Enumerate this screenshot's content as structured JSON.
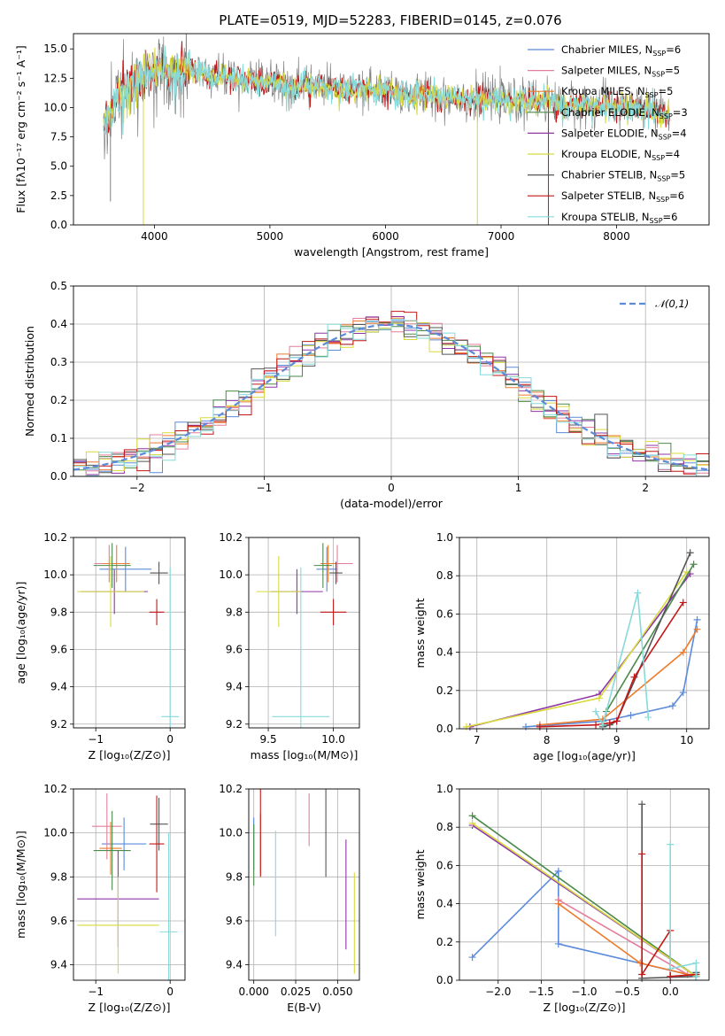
{
  "figure": {
    "title": "PLATE=0519, MJD=52283, FIBERID=0145, z=0.076"
  },
  "colors": {
    "Chabrier MILES": "#5b8bd9",
    "Salpeter MILES": "#e37f9b",
    "Kroupa MILES": "#ee7b2c",
    "Chabrier ELODIE": "#4a8a4a",
    "Salpeter ELODIE": "#8e36a6",
    "Kroupa ELODIE": "#d7da3d",
    "Chabrier STELIB": "#555555",
    "Salpeter STELIB": "#c41616",
    "Kroupa STELIB": "#86dada",
    "normal": "#5b8bd9"
  },
  "chart_data": [
    {
      "id": "spectrum",
      "type": "line",
      "xlabel": "wavelength [Angstrom, rest frame]",
      "ylabel": "Flux [fλ10⁻¹⁷ erg cm⁻² s⁻¹ A⁻¹]",
      "xlim": [
        3300,
        8800
      ],
      "ylim": [
        0,
        16.3
      ],
      "xticks": [
        4000,
        5000,
        6000,
        7000,
        8000
      ],
      "yticks": [
        0.0,
        2.5,
        5.0,
        7.5,
        10.0,
        12.5,
        15.0
      ],
      "yticklabels": [
        "0.0",
        "2.5",
        "5.0",
        "7.5",
        "10.0",
        "12.5",
        "15.0"
      ],
      "grid": false,
      "legend_position": "top-right",
      "legend": [
        {
          "name": "Chabrier MILES",
          "nssp": 6
        },
        {
          "name": "Salpeter MILES",
          "nssp": 5
        },
        {
          "name": "Kroupa MILES",
          "nssp": 5
        },
        {
          "name": "Chabrier ELODIE",
          "nssp": 3
        },
        {
          "name": "Salpeter ELODIE",
          "nssp": 4
        },
        {
          "name": "Kroupa ELODIE",
          "nssp": 4
        },
        {
          "name": "Chabrier STELIB",
          "nssp": 5
        },
        {
          "name": "Salpeter STELIB",
          "nssp": 6
        },
        {
          "name": "Kroupa STELIB",
          "nssp": 6
        }
      ],
      "data_curve": {
        "x": [
          3600,
          3700,
          3800,
          3900,
          4000,
          4100,
          4200,
          4300,
          4400,
          4500,
          4600,
          4700,
          4800,
          4900,
          5000,
          5100,
          5200,
          5300,
          5400,
          5500,
          5600,
          5700,
          5800,
          5900,
          6000,
          6100,
          6200,
          6300,
          6400,
          6500,
          6600,
          6700,
          6800,
          6900,
          7000,
          7100,
          7200,
          7300,
          7400,
          7500,
          7600,
          7700,
          7800,
          7900,
          8000,
          8100,
          8200,
          8300,
          8400
        ],
        "y": [
          9.0,
          11.5,
          12.0,
          12.8,
          13.4,
          13.3,
          13.0,
          13.4,
          12.9,
          12.7,
          12.6,
          12.5,
          12.4,
          12.3,
          12.1,
          12.0,
          11.6,
          12.0,
          11.8,
          11.5,
          11.6,
          11.3,
          11.6,
          11.4,
          11.5,
          11.2,
          11.0,
          11.2,
          11.1,
          10.9,
          11.0,
          10.8,
          10.6,
          10.8,
          10.7,
          10.4,
          10.5,
          10.5,
          10.7,
          10.3,
          10.2,
          10.3,
          10.2,
          10.1,
          10.1,
          10.0,
          10.0,
          9.8,
          9.5
        ]
      }
    },
    {
      "id": "residual-histogram",
      "type": "line",
      "xlabel": "(data-model)/error",
      "ylabel": "Normed distribution",
      "xlim": [
        -2.5,
        2.5
      ],
      "ylim": [
        0,
        0.5
      ],
      "xticks": [
        -2,
        -1,
        0,
        1,
        2
      ],
      "xticklabels": [
        "−2",
        "−1",
        "0",
        "1",
        "2"
      ],
      "yticks": [
        0.0,
        0.1,
        0.2,
        0.3,
        0.4,
        0.5
      ],
      "yticklabels": [
        "0.0",
        "0.1",
        "0.2",
        "0.3",
        "0.4",
        "0.5"
      ],
      "grid": true,
      "legend_position": "top-right",
      "reference_curve": {
        "name": "𝒩(0,1)",
        "mu": 0,
        "sigma": 1
      }
    },
    {
      "id": "age-vs-Z",
      "type": "scatter",
      "xlabel": "Z [log₁₀(Z/Z⊙)]",
      "ylabel": "age  [log₁₀(age/yr)]",
      "xlim": [
        -1.3,
        0.2
      ],
      "ylim": [
        9.18,
        10.2
      ],
      "xticks": [
        -1,
        0
      ],
      "xticklabels": [
        "−1",
        "0"
      ],
      "yticks": [
        9.2,
        9.4,
        9.6,
        9.8,
        10.0,
        10.2
      ],
      "yticklabels": [
        "9.2",
        "9.4",
        "9.6",
        "9.8",
        "10.0",
        "10.2"
      ],
      "grid": true,
      "points": [
        {
          "series": "Chabrier MILES",
          "x": -0.6,
          "xerr": 0.35,
          "y": 10.03,
          "yerr": 0.12
        },
        {
          "series": "Salpeter MILES",
          "x": -0.82,
          "xerr": 0.2,
          "y": 10.06,
          "yerr": 0.1
        },
        {
          "series": "Kroupa MILES",
          "x": -0.72,
          "xerr": 0.18,
          "y": 10.06,
          "yerr": 0.1
        },
        {
          "series": "Chabrier ELODIE",
          "x": -0.78,
          "xerr": 0.25,
          "y": 10.05,
          "yerr": 0.12
        },
        {
          "series": "Salpeter ELODIE",
          "x": -0.75,
          "xerr": 0.45,
          "y": 9.91,
          "yerr": 0.12
        },
        {
          "series": "Kroupa ELODIE",
          "x": -0.8,
          "xerr": 0.45,
          "y": 9.91,
          "yerr": 0.19
        },
        {
          "series": "Chabrier STELIB",
          "x": -0.15,
          "xerr": 0.12,
          "y": 10.01,
          "yerr": 0.06
        },
        {
          "series": "Salpeter STELIB",
          "x": -0.18,
          "xerr": 0.1,
          "y": 9.8,
          "yerr": 0.07
        },
        {
          "series": "Kroupa STELIB",
          "x": 0.0,
          "xerr": 0.12,
          "y": 9.24,
          "yerr": 0.8
        }
      ]
    },
    {
      "id": "age-vs-mass",
      "type": "scatter",
      "xlabel": "mass [log₁₀(M/M⊙)]",
      "ylabel": "",
      "xlim": [
        9.35,
        10.2
      ],
      "ylim": [
        9.18,
        10.2
      ],
      "xticks": [
        9.5,
        10.0
      ],
      "xticklabels": [
        "9.5",
        "10.0"
      ],
      "yticks": [
        9.2,
        9.4,
        9.6,
        9.8,
        10.0,
        10.2
      ],
      "yticklabels": [
        "9.2",
        "9.4",
        "9.6",
        "9.8",
        "10.0",
        "10.2"
      ],
      "grid": true,
      "points": [
        {
          "series": "Chabrier MILES",
          "x": 9.95,
          "xerr": 0.08,
          "y": 10.03,
          "yerr": 0.12
        },
        {
          "series": "Salpeter MILES",
          "x": 10.03,
          "xerr": 0.12,
          "y": 10.06,
          "yerr": 0.1
        },
        {
          "series": "Kroupa MILES",
          "x": 9.96,
          "xerr": 0.06,
          "y": 10.06,
          "yerr": 0.1
        },
        {
          "series": "Chabrier ELODIE",
          "x": 9.92,
          "xerr": 0.07,
          "y": 10.05,
          "yerr": 0.12
        },
        {
          "series": "Salpeter ELODIE",
          "x": 9.72,
          "xerr": 0.2,
          "y": 9.91,
          "yerr": 0.12
        },
        {
          "series": "Kroupa ELODIE",
          "x": 9.58,
          "xerr": 0.17,
          "y": 9.91,
          "yerr": 0.19
        },
        {
          "series": "Chabrier STELIB",
          "x": 10.02,
          "xerr": 0.05,
          "y": 10.01,
          "yerr": 0.06
        },
        {
          "series": "Salpeter STELIB",
          "x": 10.0,
          "xerr": 0.1,
          "y": 9.8,
          "yerr": 0.07
        },
        {
          "series": "Kroupa STELIB",
          "x": 9.75,
          "xerr": 0.22,
          "y": 9.24,
          "yerr": 0.8
        }
      ]
    },
    {
      "id": "weight-vs-age",
      "type": "line",
      "xlabel": "age  [log₁₀(age/yr)]",
      "ylabel": "mass weight",
      "xlim": [
        6.75,
        10.32
      ],
      "ylim": [
        0,
        1.0
      ],
      "xticks": [
        7,
        8,
        9,
        10
      ],
      "yticks": [
        0.0,
        0.2,
        0.4,
        0.6,
        0.8,
        1.0
      ],
      "yticklabels": [
        "0.0",
        "0.2",
        "0.4",
        "0.6",
        "0.8",
        "1.0"
      ],
      "grid": true,
      "series": [
        {
          "name": "Chabrier MILES",
          "x": [
            7.7,
            8.8,
            9.2,
            9.8,
            9.95,
            10.15
          ],
          "y": [
            0.01,
            0.04,
            0.07,
            0.12,
            0.19,
            0.57
          ]
        },
        {
          "name": "Kroupa MILES",
          "x": [
            7.9,
            8.8,
            9.95,
            10.15
          ],
          "y": [
            0.02,
            0.05,
            0.4,
            0.52
          ]
        },
        {
          "name": "Salpeter ELODIE",
          "x": [
            6.9,
            8.75,
            10.05
          ],
          "y": [
            0.01,
            0.18,
            0.81
          ]
        },
        {
          "name": "Kroupa ELODIE",
          "x": [
            6.85,
            8.75,
            10.0
          ],
          "y": [
            0.01,
            0.16,
            0.82
          ]
        },
        {
          "name": "Chabrier ELODIE",
          "x": [
            8.8,
            8.85,
            10.1
          ],
          "y": [
            0.02,
            0.09,
            0.86
          ]
        },
        {
          "name": "Chabrier STELIB",
          "x": [
            8.8,
            8.9,
            9.0,
            10.05
          ],
          "y": [
            0.01,
            0.02,
            0.04,
            0.92
          ]
        },
        {
          "name": "Salpeter STELIB",
          "x": [
            7.9,
            8.7,
            8.9,
            9.0,
            9.25,
            9.95
          ],
          "y": [
            0.01,
            0.02,
            0.03,
            0.04,
            0.27,
            0.66
          ]
        },
        {
          "name": "Kroupa STELIB",
          "x": [
            8.7,
            8.8,
            9.3,
            9.45
          ],
          "y": [
            0.09,
            0.02,
            0.71,
            0.06
          ]
        }
      ]
    },
    {
      "id": "mass-vs-Z",
      "type": "scatter",
      "xlabel": "Z [log₁₀(Z/Z⊙)]",
      "ylabel": "mass [log₁₀(M/M⊙)]",
      "xlim": [
        -1.3,
        0.2
      ],
      "ylim": [
        9.33,
        10.2
      ],
      "xticks": [
        -1,
        0
      ],
      "xticklabels": [
        "−1",
        "0"
      ],
      "yticks": [
        9.4,
        9.6,
        9.8,
        10.0,
        10.2
      ],
      "yticklabels": [
        "9.4",
        "9.6",
        "9.8",
        "10.0",
        "10.2"
      ],
      "grid": true,
      "points": [
        {
          "series": "Chabrier MILES",
          "x": -0.62,
          "xerr": 0.3,
          "y": 9.95,
          "yerr": 0.12
        },
        {
          "series": "Salpeter MILES",
          "x": -0.85,
          "xerr": 0.2,
          "y": 10.03,
          "yerr": 0.15
        },
        {
          "series": "Kroupa MILES",
          "x": -0.8,
          "xerr": 0.15,
          "y": 9.93,
          "yerr": 0.12
        },
        {
          "series": "Chabrier ELODIE",
          "x": -0.78,
          "xerr": 0.25,
          "y": 9.92,
          "yerr": 0.18
        },
        {
          "series": "Salpeter ELODIE",
          "x": -0.7,
          "xerr": 0.55,
          "y": 9.7,
          "yerr": 0.22
        },
        {
          "series": "Kroupa ELODIE",
          "x": -0.7,
          "xerr": 0.55,
          "y": 9.58,
          "yerr": 0.22
        },
        {
          "series": "Chabrier STELIB",
          "x": -0.15,
          "xerr": 0.12,
          "y": 10.04,
          "yerr": 0.12
        },
        {
          "series": "Salpeter STELIB",
          "x": -0.18,
          "xerr": 0.1,
          "y": 9.95,
          "yerr": 0.22
        },
        {
          "series": "Kroupa STELIB",
          "x": -0.02,
          "xerr": 0.12,
          "y": 9.55,
          "yerr": 0.45
        }
      ]
    },
    {
      "id": "mass-vs-ebv",
      "type": "scatter",
      "xlabel": "E(B-V)",
      "ylabel": "",
      "xlim": [
        -0.003,
        0.063
      ],
      "ylim": [
        9.33,
        10.2
      ],
      "xticks": [
        0.0,
        0.025,
        0.05
      ],
      "xticklabels": [
        "0.000",
        "0.025",
        "0.050"
      ],
      "yticks": [
        9.4,
        9.6,
        9.8,
        10.0,
        10.2
      ],
      "yticklabels": [
        "9.4",
        "9.6",
        "9.8",
        "10.0",
        "10.2"
      ],
      "grid": true,
      "points": [
        {
          "series": "Chabrier MILES",
          "x": 0.0,
          "xerr": 0,
          "y": 9.95,
          "yerr": 0.12
        },
        {
          "series": "Salpeter MILES",
          "x": 0.033,
          "xerr": 0,
          "y": 10.06,
          "yerr": 0.12
        },
        {
          "series": "Kroupa MILES",
          "x": 0.004,
          "xerr": 0,
          "y": 9.95,
          "yerr": 0.14
        },
        {
          "series": "Chabrier ELODIE",
          "x": 0.0,
          "xerr": 0,
          "y": 9.9,
          "yerr": 0.14
        },
        {
          "series": "Salpeter ELODIE",
          "x": 0.055,
          "xerr": 0,
          "y": 9.72,
          "yerr": 0.25
        },
        {
          "series": "Kroupa ELODIE",
          "x": 0.06,
          "xerr": 0,
          "y": 9.59,
          "yerr": 0.23
        },
        {
          "series": "Chabrier STELIB",
          "x": 0.043,
          "xerr": 0,
          "y": 10.0,
          "yerr": 0.2
        },
        {
          "series": "Salpeter STELIB",
          "x": 0.004,
          "xerr": 0,
          "y": 10.0,
          "yerr": 0.2
        },
        {
          "series": "Kroupa STELIB",
          "x": 0.013,
          "xerr": 0,
          "y": 9.77,
          "yerr": 0.24
        }
      ]
    },
    {
      "id": "weight-vs-Z",
      "type": "line",
      "xlabel": "Z [log₁₀(Z/Z⊙)]",
      "ylabel": "mass weight",
      "xlim": [
        -2.45,
        0.45
      ],
      "ylim": [
        0,
        1.0
      ],
      "xticks": [
        -2.0,
        -1.5,
        -1.0,
        -0.5,
        0.0
      ],
      "xticklabels": [
        "−2.0",
        "−1.5",
        "−1.0",
        "−0.5",
        "0.0"
      ],
      "yticks": [
        0.0,
        0.2,
        0.4,
        0.6,
        0.8,
        1.0
      ],
      "yticklabels": [
        "0.0",
        "0.2",
        "0.4",
        "0.6",
        "0.8",
        "1.0"
      ],
      "grid": true,
      "series": [
        {
          "name": "Chabrier MILES",
          "x": [
            -2.3,
            -1.3,
            -1.3,
            0.3,
            0.3
          ],
          "y": [
            0.12,
            0.57,
            0.19,
            0.02,
            0.04
          ]
        },
        {
          "name": "Salpeter MILES",
          "x": [
            -1.3,
            0.2
          ],
          "y": [
            0.42,
            0.03
          ]
        },
        {
          "name": "Kroupa MILES",
          "x": [
            -1.3,
            -0.35,
            0.3
          ],
          "y": [
            0.4,
            0.09,
            0.02
          ]
        },
        {
          "name": "Chabrier ELODIE",
          "x": [
            -2.3,
            0.3,
            0.3
          ],
          "y": [
            0.86,
            0.02,
            0.03
          ]
        },
        {
          "name": "Salpeter ELODIE",
          "x": [
            -2.3,
            0.3
          ],
          "y": [
            0.81,
            0.02
          ]
        },
        {
          "name": "Kroupa ELODIE",
          "x": [
            -2.3,
            0.3
          ],
          "y": [
            0.82,
            0.02
          ]
        },
        {
          "name": "Chabrier STELIB",
          "x": [
            -0.33,
            -0.33,
            0.3,
            0.3
          ],
          "y": [
            0.92,
            0.01,
            0.02,
            0.04
          ]
        },
        {
          "name": "Salpeter STELIB",
          "x": [
            -0.33,
            -0.33,
            0.0,
            0.0,
            0.3
          ],
          "y": [
            0.66,
            0.03,
            0.26,
            0.02,
            0.03
          ]
        },
        {
          "name": "Kroupa STELIB",
          "x": [
            0.0,
            0.0,
            0.3,
            0.3
          ],
          "y": [
            0.71,
            0.06,
            0.09,
            0.02
          ]
        }
      ]
    }
  ]
}
